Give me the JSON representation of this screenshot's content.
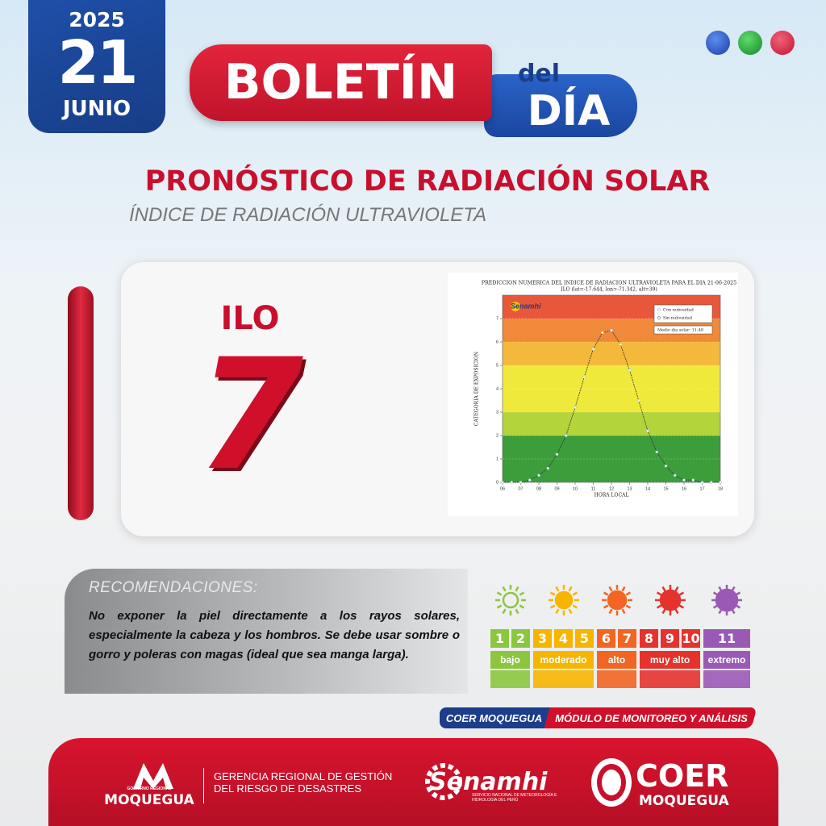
{
  "date": {
    "year": "2025",
    "day": "21",
    "month": "JUNIO"
  },
  "header": {
    "boletin": "BOLETÍN",
    "del": "del",
    "dia": "DÍA"
  },
  "title": "PRONÓSTICO DE RADIACIÓN SOLAR",
  "subtitle": "ÍNDICE DE RADIACIÓN ULTRAVIOLETA",
  "forecast": {
    "location": "ILO",
    "uv_index": 7
  },
  "chart_data": {
    "type": "line",
    "title": "PREDICCION NUMERICA DEL INDICE DE RADIACION ULTRAVIOLETA PARA EL DIA 21-06-2025",
    "subtitle": "ILO (lat=-17.644, lon=-71.342, alt=39)",
    "xlabel": "HORA LOCAL",
    "ylabel": "CATEGORIA DE EXPOSICION",
    "logo": "Senamhi",
    "annotation": "Medio día solar: 11:48",
    "x": [
      6,
      6.5,
      7,
      7.5,
      8,
      8.5,
      9,
      9.5,
      10,
      10.5,
      11,
      11.5,
      12,
      12.5,
      13,
      13.5,
      14,
      14.5,
      15,
      15.5,
      16,
      16.5,
      17,
      17.5,
      18
    ],
    "series": [
      {
        "name": "Con nubosidad",
        "color": "#e6f6ff",
        "marker": true,
        "values": [
          0,
          0,
          0,
          0.1,
          0.3,
          0.6,
          1.2,
          2,
          3.2,
          4.5,
          5.7,
          6.4,
          6.5,
          5.9,
          4.8,
          3.5,
          2.2,
          1.3,
          0.7,
          0.3,
          0.1,
          0.1,
          0,
          0,
          0
        ]
      },
      {
        "name": "Sin nubosidad",
        "color": "#333333",
        "marker": false,
        "values": [
          0,
          0,
          0,
          0.1,
          0.3,
          0.6,
          1.2,
          2,
          3.2,
          4.5,
          5.7,
          6.4,
          6.5,
          5.9,
          4.8,
          3.5,
          2.2,
          1.3,
          0.7,
          0.3,
          0.1,
          0.1,
          0,
          0,
          0
        ]
      }
    ],
    "bands": [
      {
        "from": 0,
        "to": 2,
        "color": "#3c9e3a"
      },
      {
        "from": 2,
        "to": 3,
        "color": "#b4d43c"
      },
      {
        "from": 3,
        "to": 5,
        "color": "#efe93b"
      },
      {
        "from": 5,
        "to": 6,
        "color": "#f4b93a"
      },
      {
        "from": 6,
        "to": 7,
        "color": "#f0893a"
      },
      {
        "from": 7,
        "to": 8,
        "color": "#e9573a"
      }
    ],
    "xlim": [
      6,
      18
    ],
    "ylim": [
      0,
      8
    ],
    "xticks": [
      {
        "value": 6,
        "label": "06"
      },
      {
        "value": 7,
        "label": "07"
      },
      {
        "value": 8,
        "label": "08"
      },
      {
        "value": 9,
        "label": "09"
      },
      10,
      11,
      12,
      13,
      14,
      15,
      16,
      17,
      18
    ],
    "yticks": [
      0,
      1,
      2,
      3,
      4,
      5,
      6,
      7
    ],
    "grid": true
  },
  "recommendations": {
    "heading": "RECOMENDACIONES:",
    "text": "No exponer la piel directamente a los rayos solares, especialmente la cabeza y los hombros. Se debe usar sombre o gorro y poleras con magas (ideal que sea manga larga)."
  },
  "uv_scale": [
    {
      "label": "bajo",
      "color": "#8cc63f",
      "levels": [
        1,
        2
      ]
    },
    {
      "label": "moderado",
      "color": "#f7b500",
      "levels": [
        3,
        4,
        5
      ]
    },
    {
      "label": "alto",
      "color": "#f26522",
      "levels": [
        6,
        7
      ]
    },
    {
      "label": "muy alto",
      "color": "#e5322d",
      "levels": [
        8,
        9,
        10
      ]
    },
    {
      "label": "extremo",
      "color": "#9b59b6",
      "levels": [
        11
      ]
    }
  ],
  "tag": {
    "left": "COER MOQUEGUA",
    "right": "MÓDULO DE MONITOREO Y ANÁLISIS"
  },
  "footer": {
    "gore_top": "GOBIERNO REGIONAL",
    "gore_name": "MOQUEGUA",
    "gerencia_line1": "GERENCIA REGIONAL DE GESTIÓN",
    "gerencia_line2": "DEL RIESGO DE DESASTRES",
    "senamhi_name": "Senamhi",
    "senamhi_desc": "SERVICIO NACIONAL DE METEOROLOGÍA E HIDROLOGÍA DEL PERÚ",
    "coer_name": "COER",
    "coer_region": "MOQUEGUA"
  }
}
